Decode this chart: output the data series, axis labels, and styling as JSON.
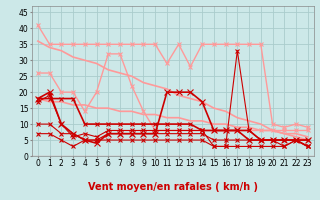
{
  "x": [
    0,
    1,
    2,
    3,
    4,
    5,
    6,
    7,
    8,
    9,
    10,
    11,
    12,
    13,
    14,
    15,
    16,
    17,
    18,
    19,
    20,
    21,
    22,
    23
  ],
  "background_color": "#cce8e8",
  "grid_color": "#aacccc",
  "xlabel": "Vent moyen/en rafales ( km/h )",
  "ylim": [
    0,
    47
  ],
  "yticks": [
    0,
    5,
    10,
    15,
    20,
    25,
    30,
    35,
    40,
    45
  ],
  "lines": [
    {
      "y": [
        41,
        35,
        35,
        35,
        35,
        35,
        35,
        35,
        35,
        35,
        35,
        29,
        35,
        28,
        35,
        35,
        35,
        35,
        35,
        35,
        10,
        9,
        10,
        9
      ],
      "color": "#ff9999",
      "lw": 1.0,
      "marker": "x",
      "ms": 3,
      "zorder": 2
    },
    {
      "y": [
        26,
        26,
        20,
        20,
        14,
        20,
        32,
        32,
        22,
        14,
        8,
        8,
        8,
        8,
        8,
        8,
        8,
        8,
        8,
        8,
        8,
        8,
        8,
        8
      ],
      "color": "#ff9999",
      "lw": 1.0,
      "marker": "x",
      "ms": 3,
      "zorder": 2
    },
    {
      "y": [
        36,
        34,
        33,
        31,
        30,
        29,
        27,
        26,
        25,
        23,
        22,
        21,
        19,
        18,
        17,
        15,
        14,
        12,
        11,
        10,
        8,
        7,
        6,
        5
      ],
      "color": "#ff9999",
      "lw": 1.2,
      "marker": null,
      "ms": 0,
      "zorder": 2
    },
    {
      "y": [
        18,
        17,
        17,
        16,
        16,
        15,
        15,
        14,
        14,
        13,
        13,
        12,
        12,
        11,
        11,
        10,
        10,
        9,
        9,
        8,
        8,
        7,
        7,
        6
      ],
      "color": "#ff9999",
      "lw": 1.2,
      "marker": null,
      "ms": 0,
      "zorder": 2
    },
    {
      "y": [
        18,
        20,
        10,
        7,
        5,
        4,
        7,
        7,
        7,
        7,
        7,
        20,
        20,
        20,
        17,
        8,
        8,
        8,
        5,
        5,
        5,
        5,
        5,
        5
      ],
      "color": "#cc0000",
      "lw": 1.2,
      "marker": "x",
      "ms": 4,
      "zorder": 4
    },
    {
      "y": [
        7,
        7,
        5,
        3,
        5,
        5,
        5,
        5,
        5,
        5,
        5,
        5,
        5,
        5,
        5,
        3,
        3,
        3,
        3,
        3,
        3,
        3,
        5,
        3
      ],
      "color": "#cc0000",
      "lw": 0.8,
      "marker": "x",
      "ms": 3,
      "zorder": 4
    },
    {
      "y": [
        10,
        10,
        7,
        7,
        5,
        5,
        7,
        7,
        7,
        7,
        7,
        7,
        7,
        7,
        7,
        5,
        5,
        5,
        5,
        5,
        5,
        5,
        5,
        5
      ],
      "color": "#cc0000",
      "lw": 0.8,
      "marker": "x",
      "ms": 3,
      "zorder": 4
    },
    {
      "y": [
        18,
        18,
        18,
        18,
        10,
        10,
        10,
        10,
        10,
        10,
        10,
        10,
        10,
        10,
        8,
        8,
        8,
        8,
        8,
        5,
        5,
        5,
        5,
        3
      ],
      "color": "#cc0000",
      "lw": 1.2,
      "marker": "x",
      "ms": 3,
      "zorder": 4
    },
    {
      "y": [
        17,
        19,
        10,
        6,
        7,
        6,
        8,
        8,
        8,
        8,
        8,
        8,
        8,
        8,
        8,
        3,
        3,
        33,
        8,
        5,
        5,
        3,
        5,
        3
      ],
      "color": "#cc0000",
      "lw": 0.8,
      "marker": "x",
      "ms": 3,
      "zorder": 4
    }
  ],
  "arrow_syms": [
    "→",
    "→",
    "↑",
    "↑",
    "←",
    "←",
    "←",
    "→",
    "→",
    "→",
    "→",
    "→",
    "→",
    "→",
    "→",
    "→",
    "↗",
    "←",
    "←",
    "↙",
    "←",
    "↑",
    "↗",
    "↗"
  ],
  "xlabel_fontsize": 7,
  "tick_fontsize": 5.5
}
